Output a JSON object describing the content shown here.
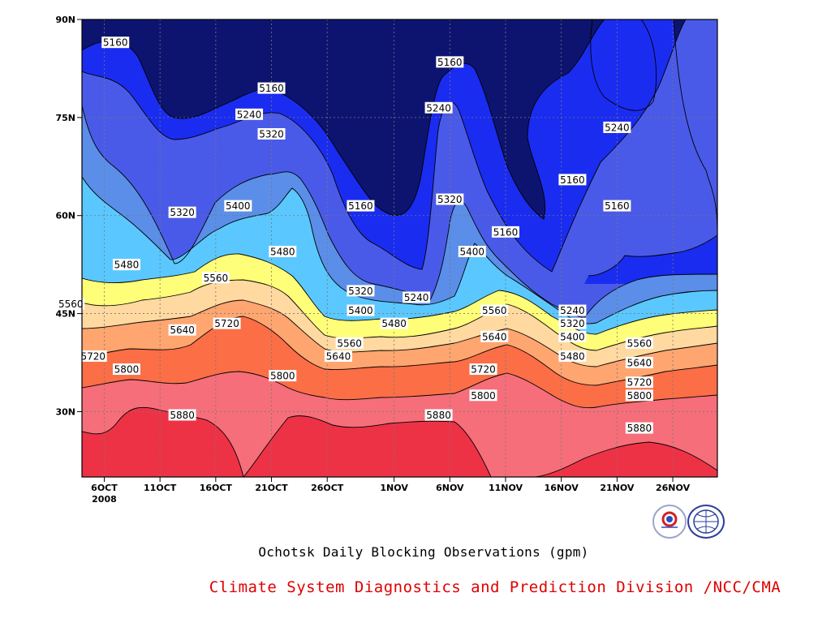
{
  "chart_data": {
    "type": "heatmap",
    "subtype": "filled-contour",
    "title": "Ochotsk Daily Blocking Observations (gpm)",
    "credit": "Climate System Diagnostics and Prediction Division /NCC/CMA",
    "x_tick_labels": [
      "6OCT",
      "11OCT",
      "16OCT",
      "21OCT",
      "26OCT",
      "1NOV",
      "6NOV",
      "11NOV",
      "16NOV",
      "21NOV",
      "26NOV"
    ],
    "x_year_label": "2008",
    "y_tick_labels": [
      "30N",
      "45N",
      "60N",
      "75N",
      "90N"
    ],
    "x_range": [
      "2008-10-04",
      "2008-11-30"
    ],
    "y_range": [
      20,
      90
    ],
    "grid": true,
    "contour_levels": [
      5160,
      5240,
      5320,
      5400,
      5480,
      5560,
      5640,
      5720,
      5800,
      5880
    ],
    "band_colors": [
      "#0d1470",
      "#1a2cf0",
      "#4a5ae8",
      "#5a8ee8",
      "#5ac8ff",
      "#fffe78",
      "#ffd9a0",
      "#ffa570",
      "#fb6e46",
      "#f56e7a",
      "#ee3246"
    ],
    "contour_labels": [
      {
        "x": "2008-10-07",
        "y": 86.5,
        "text": "5160"
      },
      {
        "x": "2008-10-21",
        "y": 79.5,
        "text": "5160"
      },
      {
        "x": "2008-10-19",
        "y": 75.5,
        "text": "5240"
      },
      {
        "x": "2008-10-21",
        "y": 72.5,
        "text": "5320"
      },
      {
        "x": "2008-10-13",
        "y": 60.5,
        "text": "5320"
      },
      {
        "x": "2008-10-18",
        "y": 61.5,
        "text": "5400"
      },
      {
        "x": "2008-10-22",
        "y": 54.5,
        "text": "5480"
      },
      {
        "x": "2008-10-08",
        "y": 52.5,
        "text": "5480"
      },
      {
        "x": "2008-10-16",
        "y": 50.5,
        "text": "5560"
      },
      {
        "x": "2008-10-03",
        "y": 46.5,
        "text": "5560"
      },
      {
        "x": "2008-10-13",
        "y": 42.5,
        "text": "5640"
      },
      {
        "x": "2008-10-17",
        "y": 43.5,
        "text": "5720"
      },
      {
        "x": "2008-10-05",
        "y": 38.5,
        "text": "5720"
      },
      {
        "x": "2008-10-08",
        "y": 36.5,
        "text": "5800"
      },
      {
        "x": "2008-10-22",
        "y": 35.5,
        "text": "5800"
      },
      {
        "x": "2008-10-13",
        "y": 29.5,
        "text": "5880"
      },
      {
        "x": "2008-10-29",
        "y": 61.5,
        "text": "5160"
      },
      {
        "x": "2008-10-29",
        "y": 48.5,
        "text": "5320"
      },
      {
        "x": "2008-10-29",
        "y": 45.5,
        "text": "5400"
      },
      {
        "x": "2008-11-01",
        "y": 43.5,
        "text": "5480"
      },
      {
        "x": "2008-10-28",
        "y": 40.5,
        "text": "5560"
      },
      {
        "x": "2008-10-27",
        "y": 38.5,
        "text": "5640"
      },
      {
        "x": "2008-11-06",
        "y": 83.5,
        "text": "5160"
      },
      {
        "x": "2008-11-05",
        "y": 76.5,
        "text": "5240"
      },
      {
        "x": "2008-11-03",
        "y": 47.5,
        "text": "5240"
      },
      {
        "x": "2008-11-06",
        "y": 62.5,
        "text": "5320"
      },
      {
        "x": "2008-11-08",
        "y": 54.5,
        "text": "5400"
      },
      {
        "x": "2008-11-10",
        "y": 45.5,
        "text": "5560"
      },
      {
        "x": "2008-11-10",
        "y": 41.5,
        "text": "5640"
      },
      {
        "x": "2008-11-09",
        "y": 36.5,
        "text": "5720"
      },
      {
        "x": "2008-11-09",
        "y": 32.5,
        "text": "5800"
      },
      {
        "x": "2008-11-05",
        "y": 29.5,
        "text": "5880"
      },
      {
        "x": "2008-11-11",
        "y": 57.5,
        "text": "5160"
      },
      {
        "x": "2008-11-17",
        "y": 65.5,
        "text": "5160"
      },
      {
        "x": "2008-11-21",
        "y": 73.5,
        "text": "5240"
      },
      {
        "x": "2008-11-21",
        "y": 61.5,
        "text": "5160"
      },
      {
        "x": "2008-11-17",
        "y": 45.5,
        "text": "5240"
      },
      {
        "x": "2008-11-17",
        "y": 43.5,
        "text": "5320"
      },
      {
        "x": "2008-11-17",
        "y": 41.5,
        "text": "5400"
      },
      {
        "x": "2008-11-17",
        "y": 38.5,
        "text": "5480"
      },
      {
        "x": "2008-11-23",
        "y": 40.5,
        "text": "5560"
      },
      {
        "x": "2008-11-23",
        "y": 37.5,
        "text": "5640"
      },
      {
        "x": "2008-11-23",
        "y": 34.5,
        "text": "5720"
      },
      {
        "x": "2008-11-23",
        "y": 32.5,
        "text": "5800"
      },
      {
        "x": "2008-11-23",
        "y": 27.5,
        "text": "5880"
      }
    ]
  }
}
